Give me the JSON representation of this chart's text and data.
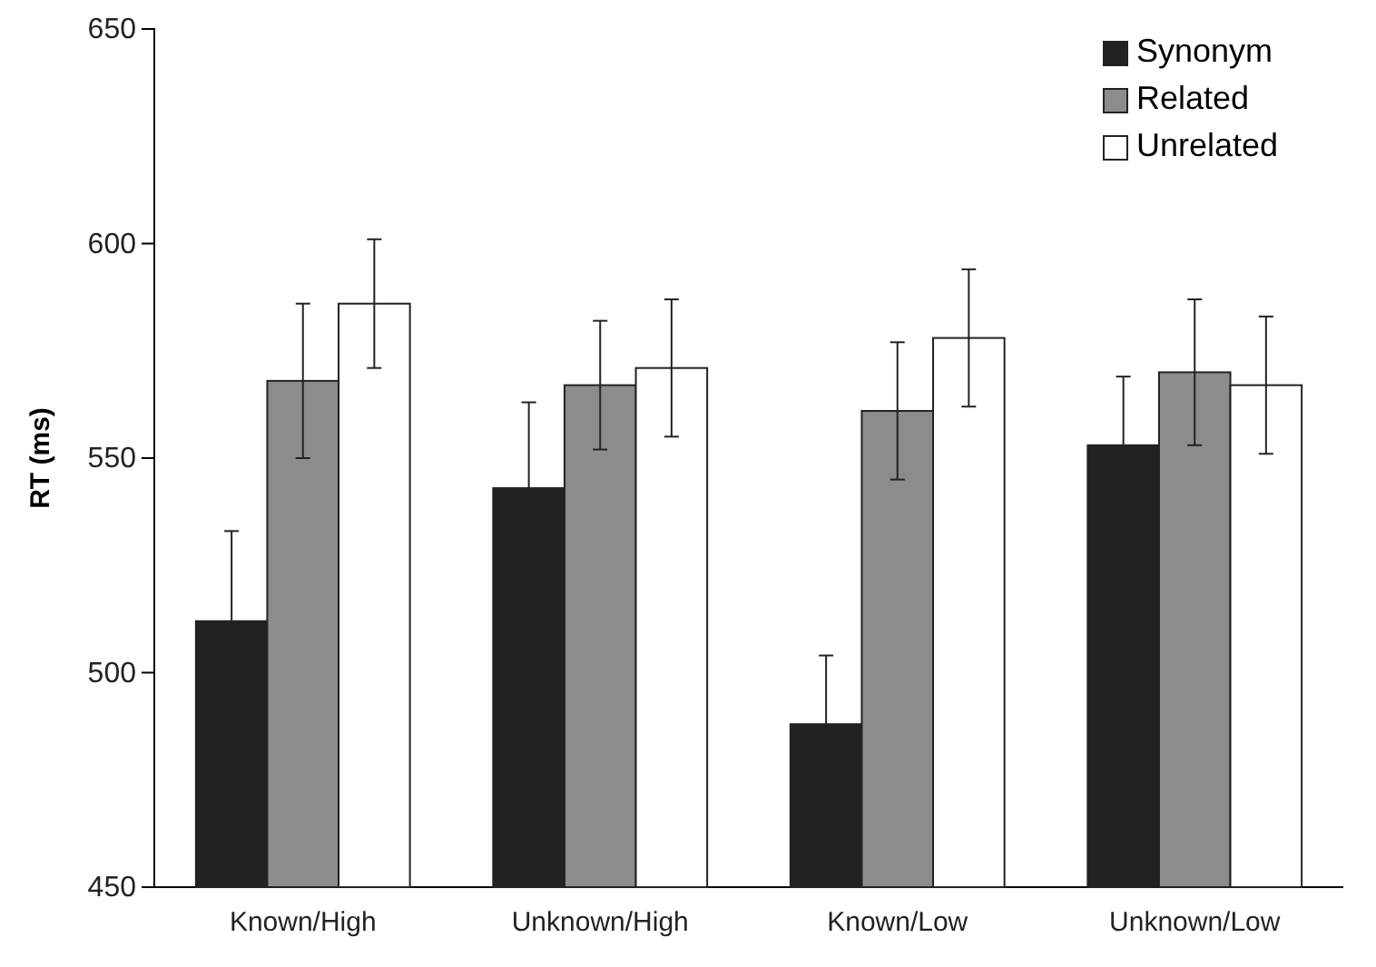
{
  "chart_data": {
    "type": "bar",
    "ylabel": "RT (ms)",
    "categories": [
      "Known/High",
      "Unknown/High",
      "Known/Low",
      "Unknown/Low"
    ],
    "series": [
      {
        "name": "Synonym",
        "color": "#222222",
        "values": [
          512,
          543,
          488,
          553
        ],
        "errors": [
          21,
          20,
          16,
          16
        ]
      },
      {
        "name": "Related",
        "color": "#8c8c8c",
        "values": [
          568,
          567,
          561,
          570
        ],
        "errors": [
          18,
          15,
          16,
          17
        ]
      },
      {
        "name": "Unrelated",
        "color": "#ffffff",
        "values": [
          586,
          571,
          578,
          567
        ],
        "errors": [
          15,
          16,
          16,
          16
        ]
      }
    ],
    "ylim": [
      450,
      650
    ],
    "yticks": [
      450,
      500,
      550,
      600,
      650
    ],
    "grid": false,
    "legend": "top right"
  }
}
